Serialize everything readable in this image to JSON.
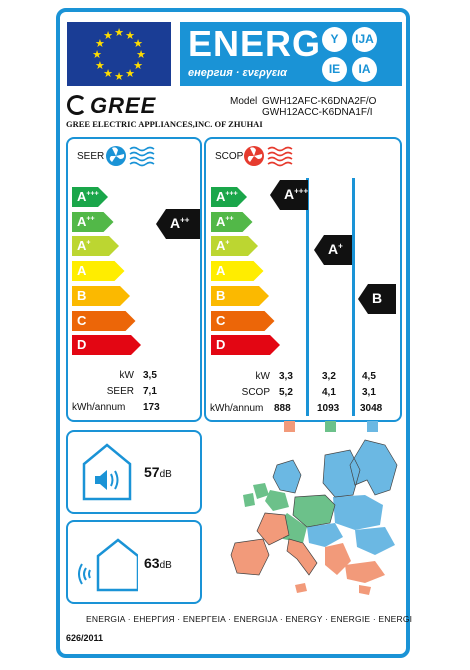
{
  "header": {
    "energ_word": "ENERG",
    "energ_sub": "енергия · ενεργεια",
    "bubbles": [
      "Y",
      "IJA",
      "IE",
      "IA"
    ],
    "eu_flag_icon": "eu-flag"
  },
  "supplier": {
    "brand": "GREE",
    "company": "GREE ELECTRIC APPLIANCES,INC. OF ZHUHAI",
    "model_label": "Model",
    "model_outdoor": "GWH12AFC-K6DNA2F/O",
    "model_indoor": "GWH12ACC-K6DNA1F/I"
  },
  "scale": {
    "classes": [
      "A",
      "A",
      "A",
      "A",
      "B",
      "C",
      "D"
    ],
    "superscripts": [
      "+++",
      "++",
      "+",
      "",
      "",
      "",
      ""
    ],
    "colors": [
      "#1aa64a",
      "#52b848",
      "#bcd631",
      "#ffed00",
      "#fbb900",
      "#ec6608",
      "#e30613"
    ]
  },
  "cooling": {
    "title": "SEER",
    "icon": "fan-cool-icon",
    "class": "A",
    "class_sup": "++",
    "stats": [
      {
        "label": "kW",
        "value": "3,5"
      },
      {
        "label": "SEER",
        "value": "7,1"
      },
      {
        "label": "kWh/annum",
        "value": "173"
      }
    ]
  },
  "heating": {
    "title": "SCOP",
    "icon": "fan-heat-icon",
    "zones": [
      {
        "class": "A",
        "class_sup": "+++",
        "kw": "3,3",
        "scop": "5,2",
        "kwh": "888",
        "color": "#f29a7a"
      },
      {
        "class": "A",
        "class_sup": "+",
        "kw": "3,2",
        "scop": "4,1",
        "kwh": "1093",
        "color": "#6cc18a"
      },
      {
        "class": "B",
        "class_sup": "",
        "kw": "4,5",
        "scop": "3,1",
        "kwh": "3048",
        "color": "#6bb8e3"
      }
    ],
    "row_labels": [
      "kW",
      "SCOP",
      "kWh/annum"
    ]
  },
  "noise": {
    "indoor": {
      "value": "57",
      "unit": "dB",
      "icon": "indoor-speaker-icon"
    },
    "outdoor": {
      "value": "63",
      "unit": "dB",
      "icon": "outdoor-sound-icon"
    }
  },
  "map_icon": "europe-climate-zones-map",
  "footer": {
    "languages": "ENERGIA · ЕНЕРГИЯ · ΕΝΕΡΓΕΙΑ · ENERGIJA · ENERGY · ENERGIE · ENERGI",
    "regulation": "626/2011"
  }
}
